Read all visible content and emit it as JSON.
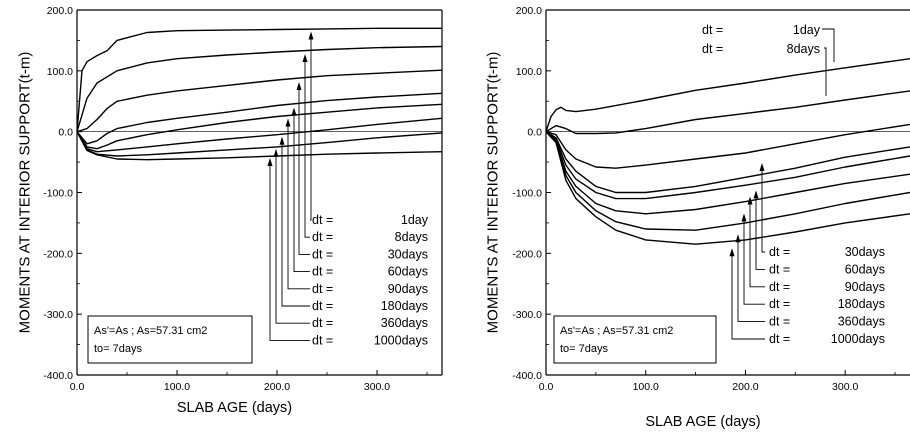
{
  "chart_data": [
    {
      "type": "line",
      "ylabel": "MOMENTS AT INTERIOR SUPPORT(t-m)",
      "xlabel": "SLAB AGE (days)",
      "xlim": [
        0,
        365
      ],
      "ylim": [
        -400,
        200
      ],
      "xticks": [
        "0.0",
        "100.0",
        "200.0",
        "300.0"
      ],
      "yticks": [
        "200.0",
        "100.0",
        "0.0",
        "-100.0",
        "-200.0",
        "-300.0",
        "-400.0"
      ],
      "zero_line": true,
      "legend_box": {
        "line1": "As'=As ; As=57.31 cm2",
        "line2": "to= 7days"
      },
      "series": [
        {
          "name": "dt =     1day",
          "label_a": "dt =",
          "label_b": "1day",
          "x": [
            0,
            5,
            10,
            20,
            30,
            40,
            70,
            100,
            150,
            200,
            250,
            300,
            365
          ],
          "y": [
            0,
            100,
            115,
            125,
            133,
            150,
            163,
            166,
            167,
            168,
            169,
            170,
            170
          ]
        },
        {
          "name": "dt =   8days",
          "label_a": "dt =",
          "label_b": "8days",
          "x": [
            0,
            10,
            20,
            40,
            70,
            100,
            150,
            200,
            250,
            300,
            365
          ],
          "y": [
            0,
            55,
            80,
            100,
            113,
            120,
            126,
            131,
            135,
            138,
            140
          ]
        },
        {
          "name": "dt = 30days",
          "label_a": "dt =",
          "label_b": "30days",
          "x": [
            0,
            10,
            20,
            30,
            40,
            70,
            100,
            150,
            200,
            250,
            300,
            365
          ],
          "y": [
            0,
            5,
            20,
            38,
            50,
            60,
            67,
            76,
            85,
            92,
            96,
            101
          ]
        },
        {
          "name": "dt = 60days",
          "label_a": "dt =",
          "label_b": "60days",
          "x": [
            0,
            10,
            20,
            30,
            40,
            70,
            100,
            150,
            200,
            250,
            300,
            365
          ],
          "y": [
            0,
            -20,
            -15,
            -3,
            5,
            15,
            22,
            32,
            43,
            51,
            57,
            63
          ]
        },
        {
          "name": "dt = 90days",
          "label_a": "dt =",
          "label_b": "90days",
          "x": [
            0,
            10,
            20,
            30,
            40,
            70,
            100,
            150,
            200,
            250,
            300,
            365
          ],
          "y": [
            0,
            -25,
            -28,
            -22,
            -15,
            -5,
            3,
            15,
            25,
            32,
            39,
            45
          ]
        },
        {
          "name": "dt = 180days",
          "label_a": "dt =",
          "label_b": "180days",
          "x": [
            0,
            10,
            20,
            40,
            70,
            100,
            150,
            200,
            250,
            300,
            365
          ],
          "y": [
            0,
            -28,
            -33,
            -30,
            -25,
            -20,
            -12,
            -5,
            3,
            12,
            22
          ]
        },
        {
          "name": "dt = 360days",
          "label_a": "dt =",
          "label_b": "360days",
          "x": [
            0,
            10,
            20,
            40,
            70,
            100,
            150,
            200,
            250,
            300,
            365
          ],
          "y": [
            0,
            -30,
            -37,
            -40,
            -38,
            -35,
            -30,
            -25,
            -18,
            -10,
            -2
          ]
        },
        {
          "name": "dt =1000days",
          "label_a": "dt =",
          "label_b": "1000days",
          "x": [
            0,
            10,
            20,
            40,
            70,
            100,
            150,
            200,
            250,
            300,
            365
          ],
          "y": [
            0,
            -31,
            -38,
            -45,
            -46,
            -45,
            -43,
            -40,
            -37,
            -35,
            -33
          ]
        }
      ]
    },
    {
      "type": "line",
      "ylabel": "MOMENTS AT INTERIOR SUPPORT(t-m)",
      "xlabel": "SLAB AGE (days)",
      "xlim": [
        0,
        365
      ],
      "ylim": [
        -400,
        200
      ],
      "xticks": [
        "0.0",
        "100.0",
        "200.0",
        "300.0"
      ],
      "yticks": [
        "200.0",
        "100.0",
        "0.0",
        "-100.0",
        "-200.0",
        "-300.0",
        "-400.0"
      ],
      "zero_line": true,
      "legend_box": {
        "line1": "As'=As ; As=57.31 cm2",
        "line2": "to= 7days"
      },
      "series": [
        {
          "name": "dt =     1day",
          "label_a": "dt =",
          "label_b": "1day",
          "x": [
            0,
            5,
            10,
            15,
            20,
            30,
            50,
            100,
            150,
            200,
            250,
            300,
            365
          ],
          "y": [
            0,
            25,
            36,
            40,
            35,
            33,
            37,
            52,
            68,
            80,
            93,
            105,
            120
          ]
        },
        {
          "name": "dt =   8days",
          "label_a": "dt =",
          "label_b": "8days",
          "x": [
            0,
            10,
            20,
            30,
            50,
            70,
            100,
            150,
            200,
            250,
            300,
            365
          ],
          "y": [
            0,
            10,
            5,
            -3,
            -3,
            -2,
            5,
            20,
            30,
            40,
            52,
            67
          ]
        },
        {
          "name": "dt = 30days",
          "label_a": "dt =",
          "label_b": "30days",
          "x": [
            0,
            10,
            20,
            30,
            50,
            70,
            100,
            150,
            200,
            250,
            300,
            365
          ],
          "y": [
            0,
            -5,
            -30,
            -45,
            -58,
            -60,
            -55,
            -45,
            -35,
            -20,
            -5,
            12
          ]
        },
        {
          "name": "dt = 60days",
          "label_a": "dt =",
          "label_b": "60days",
          "x": [
            0,
            10,
            20,
            30,
            50,
            70,
            100,
            150,
            200,
            250,
            300,
            365
          ],
          "y": [
            0,
            -10,
            -45,
            -65,
            -90,
            -100,
            -100,
            -90,
            -75,
            -60,
            -42,
            -25
          ]
        },
        {
          "name": "dt = 90days",
          "label_a": "dt =",
          "label_b": "90days",
          "x": [
            0,
            10,
            20,
            30,
            50,
            70,
            100,
            150,
            200,
            250,
            300,
            365
          ],
          "y": [
            0,
            -12,
            -55,
            -78,
            -100,
            -110,
            -110,
            -100,
            -88,
            -75,
            -58,
            -40
          ]
        },
        {
          "name": "dt = 180days",
          "label_a": "dt =",
          "label_b": "180days",
          "x": [
            0,
            10,
            20,
            30,
            50,
            70,
            100,
            150,
            200,
            250,
            300,
            365
          ],
          "y": [
            0,
            -15,
            -65,
            -90,
            -118,
            -130,
            -135,
            -128,
            -115,
            -100,
            -85,
            -70
          ]
        },
        {
          "name": "dt = 360days",
          "label_a": "dt =",
          "label_b": "360days",
          "x": [
            0,
            10,
            20,
            30,
            50,
            70,
            100,
            150,
            200,
            250,
            300,
            365
          ],
          "y": [
            0,
            -16,
            -72,
            -100,
            -130,
            -148,
            -160,
            -162,
            -150,
            -135,
            -118,
            -100
          ]
        },
        {
          "name": "dt =1000days",
          "label_a": "dt =",
          "label_b": "1000days",
          "x": [
            0,
            10,
            20,
            30,
            50,
            70,
            100,
            150,
            200,
            250,
            300,
            365
          ],
          "y": [
            0,
            -18,
            -80,
            -110,
            -140,
            -162,
            -178,
            -185,
            -178,
            -165,
            -150,
            -135
          ]
        }
      ]
    }
  ]
}
